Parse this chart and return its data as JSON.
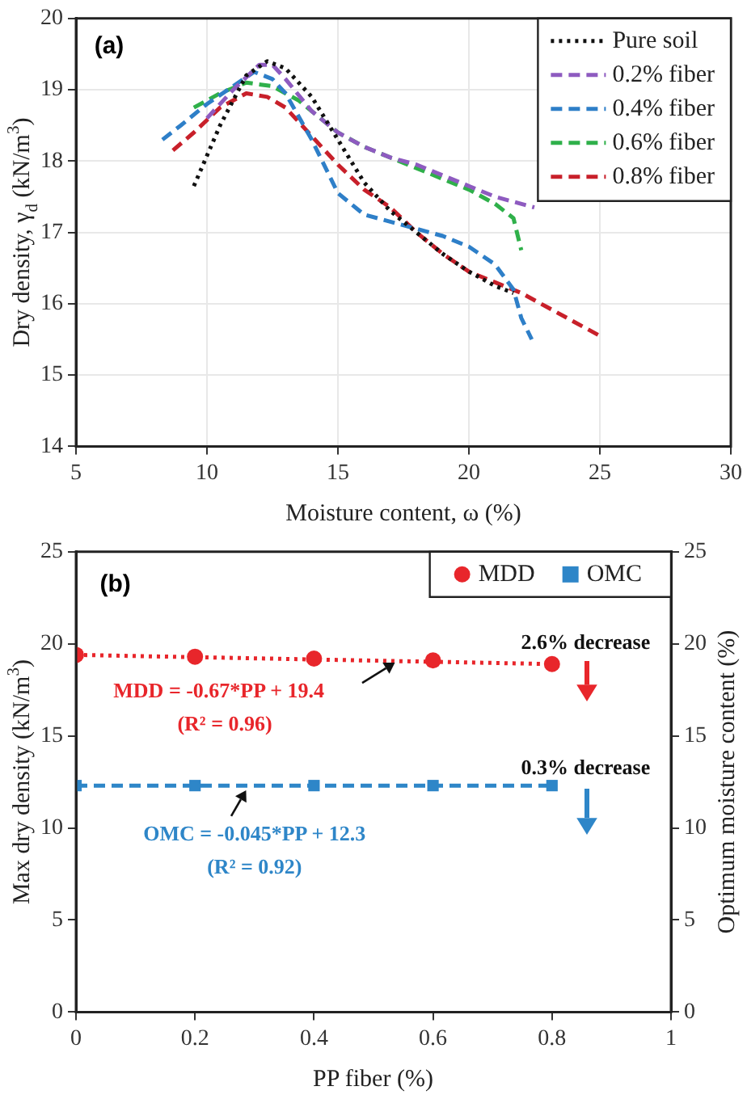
{
  "chart_data": [
    {
      "type": "line",
      "xlabel": "Moisture content, ω (%)",
      "ylabel": "Dry density, γ$_{d}$ (kN/m$^{3}$)",
      "xlim": [
        5,
        30
      ],
      "xticks": [
        5,
        10,
        15,
        20,
        25,
        30
      ],
      "ylim": [
        14,
        20
      ],
      "yticks": [
        14,
        15,
        16,
        17,
        18,
        19,
        20
      ],
      "grid": true,
      "legend": "top right",
      "marker": "none",
      "annotations": [
        "(a)"
      ],
      "series": [
        {
          "name": "Pure soil",
          "color": "#111111",
          "line_style": "dotted",
          "x": [
            9.5,
            10.5,
            11.5,
            12.3,
            13,
            14,
            15,
            16,
            17,
            18,
            19,
            20,
            21,
            21.7
          ],
          "values": [
            17.65,
            18.5,
            19.2,
            19.4,
            19.3,
            18.9,
            18.3,
            17.7,
            17.3,
            17.0,
            16.7,
            16.45,
            16.25,
            16.15
          ]
        },
        {
          "name": "0.2% fiber",
          "color": "#8e5bc0",
          "line_style": "dashed",
          "x": [
            10,
            11,
            12,
            12.5,
            13,
            14,
            15,
            16,
            17,
            18,
            19,
            20,
            21,
            22.5
          ],
          "values": [
            18.6,
            19.0,
            19.35,
            19.35,
            19.15,
            18.7,
            18.4,
            18.2,
            18.05,
            17.95,
            17.8,
            17.65,
            17.5,
            17.35
          ]
        },
        {
          "name": "0.4% fiber",
          "color": "#2e7fc8",
          "line_style": "dashed",
          "x": [
            8.3,
            9,
            10,
            11,
            11.8,
            12.5,
            13,
            14,
            15,
            16,
            17,
            18,
            19,
            20,
            21,
            21.7,
            22,
            22.4
          ],
          "values": [
            18.3,
            18.5,
            18.8,
            19.05,
            19.25,
            19.15,
            18.95,
            18.3,
            17.55,
            17.25,
            17.15,
            17.05,
            16.95,
            16.8,
            16.55,
            16.2,
            15.8,
            15.5
          ]
        },
        {
          "name": "0.6% fiber",
          "color": "#2fb04a",
          "line_style": "dashed",
          "x": [
            9.5,
            10.5,
            11.5,
            12.5,
            13.5,
            15,
            16,
            17,
            18,
            19,
            20,
            21,
            21.7,
            22
          ],
          "values": [
            18.75,
            18.95,
            19.1,
            19.05,
            18.85,
            18.4,
            18.2,
            18.05,
            17.9,
            17.75,
            17.6,
            17.4,
            17.2,
            16.75
          ]
        },
        {
          "name": "0.8% fiber",
          "color": "#c8202a",
          "line_style": "dashed",
          "x": [
            8.7,
            9.5,
            10.5,
            11.5,
            12.3,
            13,
            14,
            15,
            16,
            17,
            18,
            19,
            20,
            21,
            22,
            23,
            24,
            25
          ],
          "values": [
            18.15,
            18.4,
            18.75,
            18.95,
            18.9,
            18.75,
            18.35,
            17.95,
            17.6,
            17.35,
            17.0,
            16.7,
            16.45,
            16.3,
            16.15,
            15.95,
            15.75,
            15.55
          ]
        }
      ]
    },
    {
      "type": "scatter",
      "xlabel": "PP fiber (%)",
      "ylabel": "Max dry density (kN/m$^{3}$)",
      "y2label": "Optimum moisture content (%)",
      "xlim": [
        0,
        1
      ],
      "xticks": [
        0,
        0.2,
        0.4,
        0.6,
        0.8,
        1
      ],
      "ylim": [
        0,
        25
      ],
      "yticks": [
        0,
        5,
        10,
        15,
        20,
        25
      ],
      "y2lim": [
        0,
        25
      ],
      "y2ticks": [
        0,
        5,
        10,
        15,
        20,
        25
      ],
      "legend": "top right",
      "annotations": [
        "(b)",
        "MDD = -0.67*PP + 19.4",
        "(R² = 0.96)",
        "2.6% decrease",
        "OMC = -0.045*PP + 12.3",
        "(R² = 0.92)",
        "0.3% decrease"
      ],
      "series": [
        {
          "name": "MDD",
          "color": "#e8262b",
          "marker": "circle",
          "x": [
            0,
            0.2,
            0.4,
            0.6,
            0.8
          ],
          "values": [
            19.4,
            19.3,
            19.2,
            19.1,
            18.9
          ]
        },
        {
          "name": "OMC",
          "color": "#2e86c8",
          "marker": "square",
          "x": [
            0,
            0.2,
            0.4,
            0.6,
            0.8
          ],
          "values": [
            12.3,
            12.3,
            12.3,
            12.3,
            12.3
          ]
        },
        {
          "type": "line",
          "color": "#e8262b",
          "marker": "none",
          "line_style": "dotted",
          "x": [
            0,
            0.8
          ],
          "values": [
            19.4,
            18.9
          ]
        },
        {
          "type": "line",
          "color": "#2e86c8",
          "marker": "none",
          "line_style": "dashed",
          "x": [
            0,
            0.8
          ],
          "values": [
            12.3,
            12.3
          ]
        }
      ]
    }
  ]
}
